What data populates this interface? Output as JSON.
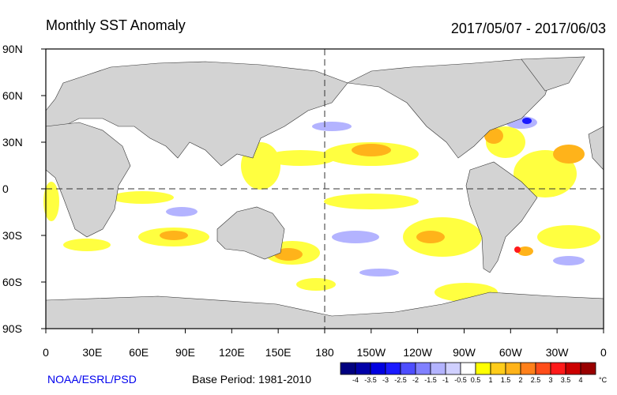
{
  "title": "Monthly SST Anomaly",
  "date_range": "2017/05/07 - 2017/06/03",
  "lat_labels": [
    "90N",
    "60N",
    "30N",
    "0",
    "30S",
    "60S",
    "90S"
  ],
  "lon_labels": [
    "0",
    "30E",
    "60E",
    "90E",
    "120E",
    "150E",
    "180",
    "150W",
    "120W",
    "90W",
    "60W",
    "30W",
    "0"
  ],
  "credit": "NOAA/ESRL/PSD",
  "base_period": "Base Period: 1981-2010",
  "colorbar": {
    "colors": [
      "#00007f",
      "#0000a8",
      "#0000e0",
      "#1a1aff",
      "#4d4dff",
      "#8080ff",
      "#b3b3ff",
      "#d0d0ff",
      "#ffffff",
      "#ffff00",
      "#ffcc1a",
      "#ffb31a",
      "#ff801a",
      "#ff4d1a",
      "#ff1a1a",
      "#cc0000",
      "#990000"
    ],
    "labels": [
      "-4",
      "-3.5",
      "-3",
      "-2.5",
      "-2",
      "-1.5",
      "-1",
      "-0.5",
      "0.5",
      "1",
      "1.5",
      "2",
      "2.5",
      "3",
      "3.5",
      "4"
    ],
    "unit": "°C"
  }
}
